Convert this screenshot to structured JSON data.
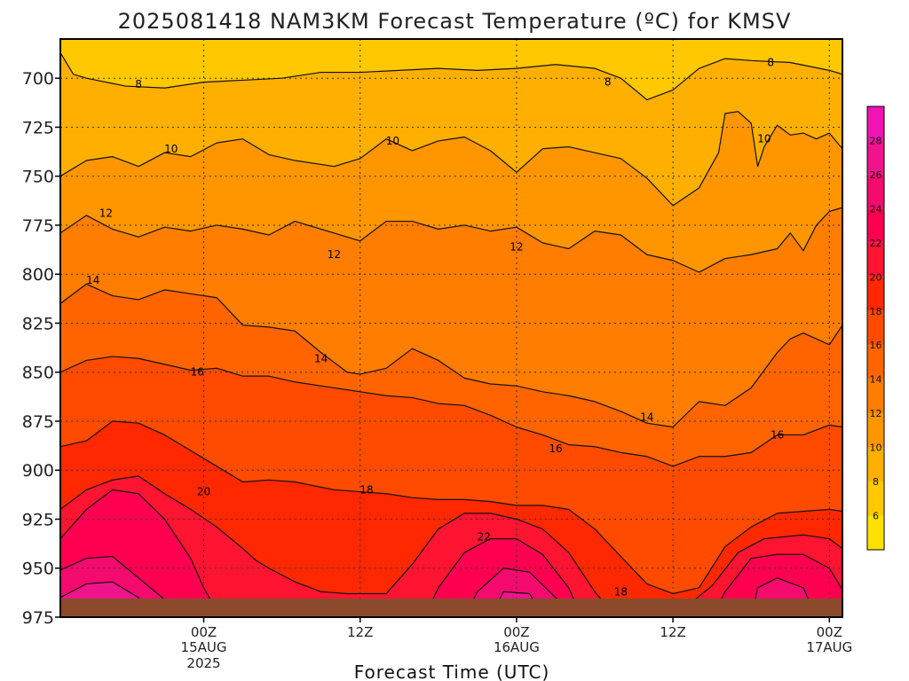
{
  "chart_data": {
    "type": "contour",
    "title": "2025081418 NAM3KM Forecast Temperature (ºC) for KMSV",
    "xlabel": "Forecast Time (UTC)",
    "ylabel": "",
    "x_unit": "hours from 2025-08-14 18Z",
    "xlim": [
      -5,
      55
    ],
    "ylim": [
      975,
      680
    ],
    "y_ticks": [
      700,
      725,
      750,
      775,
      800,
      825,
      850,
      875,
      900,
      925,
      950,
      975
    ],
    "x_ticks": [
      {
        "h": 6,
        "l1": "00Z",
        "l2": "15AUG",
        "l3": "2025"
      },
      {
        "h": 18,
        "l1": "12Z",
        "l2": "",
        "l3": ""
      },
      {
        "h": 30,
        "l1": "00Z",
        "l2": "16AUG",
        "l3": ""
      },
      {
        "h": 42,
        "l1": "12Z",
        "l2": "",
        "l3": ""
      },
      {
        "h": 54,
        "l1": "00Z",
        "l2": "17AUG",
        "l3": ""
      }
    ],
    "grid": true,
    "contour_levels": [
      6,
      8,
      10,
      12,
      14,
      16,
      18,
      20,
      22,
      24,
      26,
      28
    ],
    "colorbar": {
      "placement": "right",
      "bounds": [
        4,
        6,
        8,
        10,
        12,
        14,
        16,
        18,
        20,
        22,
        24,
        26,
        28,
        30
      ],
      "labels": [
        "6",
        "8",
        "10",
        "12",
        "14",
        "16",
        "18",
        "20",
        "22",
        "24",
        "26",
        "28"
      ],
      "colors": [
        "#ffe100",
        "#ffc800",
        "#ffaf00",
        "#ff9600",
        "#ff7d00",
        "#ff6400",
        "#ff4b00",
        "#ff2800",
        "#ff1432",
        "#ff0050",
        "#f50a6e",
        "#f0148c",
        "#f014b4"
      ]
    },
    "isotherms": [
      {
        "temp": 8,
        "points": [
          [
            -5,
            687
          ],
          [
            -4,
            698
          ],
          [
            -3,
            700
          ],
          [
            0,
            704
          ],
          [
            3,
            705
          ],
          [
            6,
            702
          ],
          [
            9,
            701
          ],
          [
            12,
            700
          ],
          [
            15,
            697
          ],
          [
            18,
            697
          ],
          [
            21,
            696
          ],
          [
            24,
            695
          ],
          [
            27,
            696
          ],
          [
            30,
            695
          ],
          [
            33,
            693
          ],
          [
            36,
            695
          ],
          [
            38,
            700
          ],
          [
            40,
            711
          ],
          [
            42,
            706
          ],
          [
            44,
            695
          ],
          [
            46,
            690
          ],
          [
            48,
            691
          ],
          [
            51,
            692
          ],
          [
            54,
            696
          ],
          [
            55,
            698
          ]
        ],
        "labels": [
          {
            "x": 1,
            "p": 703
          },
          {
            "x": 37,
            "p": 702
          },
          {
            "x": 49.5,
            "p": 692
          }
        ]
      },
      {
        "temp": 10,
        "points": [
          [
            -5,
            750
          ],
          [
            -3,
            742
          ],
          [
            -1,
            740
          ],
          [
            1,
            745
          ],
          [
            3,
            738
          ],
          [
            5,
            740
          ],
          [
            7,
            733
          ],
          [
            9,
            731
          ],
          [
            11,
            739
          ],
          [
            13,
            742
          ],
          [
            16,
            745
          ],
          [
            18,
            741
          ],
          [
            20,
            731
          ],
          [
            22,
            737
          ],
          [
            24,
            732
          ],
          [
            26,
            730
          ],
          [
            28,
            737
          ],
          [
            30,
            748
          ],
          [
            32,
            736
          ],
          [
            34,
            735
          ],
          [
            36,
            738
          ],
          [
            38,
            741
          ],
          [
            40,
            751
          ],
          [
            42,
            765
          ],
          [
            44,
            756
          ],
          [
            45.5,
            738
          ],
          [
            46,
            718
          ],
          [
            47,
            717
          ],
          [
            48,
            723
          ],
          [
            48.5,
            745
          ],
          [
            49,
            735
          ],
          [
            50,
            724
          ],
          [
            51,
            729
          ],
          [
            52,
            728
          ],
          [
            53,
            731
          ],
          [
            54,
            728
          ],
          [
            55,
            736
          ]
        ],
        "labels": [
          {
            "x": 3.5,
            "p": 736
          },
          {
            "x": 20.5,
            "p": 732
          },
          {
            "x": 49,
            "p": 731
          }
        ]
      },
      {
        "temp": 12,
        "points": [
          [
            -5,
            779
          ],
          [
            -3,
            770
          ],
          [
            -1,
            777
          ],
          [
            1,
            781
          ],
          [
            3,
            776
          ],
          [
            5,
            778
          ],
          [
            7,
            775
          ],
          [
            9,
            777
          ],
          [
            11,
            780
          ],
          [
            13,
            773
          ],
          [
            16,
            779
          ],
          [
            18,
            783
          ],
          [
            20,
            773
          ],
          [
            22,
            773
          ],
          [
            24,
            777
          ],
          [
            26,
            775
          ],
          [
            28,
            778
          ],
          [
            30,
            776
          ],
          [
            32,
            784
          ],
          [
            34,
            787
          ],
          [
            36,
            778
          ],
          [
            38,
            780
          ],
          [
            40,
            790
          ],
          [
            42,
            793
          ],
          [
            44,
            799
          ],
          [
            46,
            792
          ],
          [
            48,
            790
          ],
          [
            50,
            787
          ],
          [
            51,
            779
          ],
          [
            52,
            788
          ],
          [
            53,
            775
          ],
          [
            54,
            768
          ],
          [
            55,
            766
          ]
        ],
        "labels": [
          {
            "x": -1.5,
            "p": 769
          },
          {
            "x": 16,
            "p": 790
          },
          {
            "x": 30,
            "p": 786
          }
        ]
      },
      {
        "temp": 14,
        "points": [
          [
            -5,
            815
          ],
          [
            -3,
            805
          ],
          [
            -1,
            811
          ],
          [
            1,
            813
          ],
          [
            3,
            808
          ],
          [
            5,
            810
          ],
          [
            7,
            812
          ],
          [
            9,
            826
          ],
          [
            11,
            827
          ],
          [
            13,
            829
          ],
          [
            15,
            840
          ],
          [
            16,
            845
          ],
          [
            17,
            850
          ],
          [
            18,
            851
          ],
          [
            20,
            848
          ],
          [
            22,
            838
          ],
          [
            24,
            844
          ],
          [
            26,
            853
          ],
          [
            28,
            856
          ],
          [
            30,
            857
          ],
          [
            32,
            860
          ],
          [
            34,
            862
          ],
          [
            36,
            865
          ],
          [
            38,
            870
          ],
          [
            40,
            876
          ],
          [
            42,
            878
          ],
          [
            44,
            865
          ],
          [
            46,
            867
          ],
          [
            48,
            858
          ],
          [
            50,
            840
          ],
          [
            51,
            833
          ],
          [
            52,
            830
          ],
          [
            54,
            836
          ],
          [
            55,
            826
          ]
        ],
        "labels": [
          {
            "x": -2.5,
            "p": 803
          },
          {
            "x": 15,
            "p": 843
          },
          {
            "x": 40,
            "p": 873
          }
        ]
      },
      {
        "temp": 16,
        "points": [
          [
            -5,
            850
          ],
          [
            -3,
            844
          ],
          [
            -1,
            842
          ],
          [
            1,
            843
          ],
          [
            3,
            846
          ],
          [
            5,
            849
          ],
          [
            7,
            848
          ],
          [
            9,
            852
          ],
          [
            11,
            852
          ],
          [
            13,
            855
          ],
          [
            16,
            858
          ],
          [
            18,
            860
          ],
          [
            20,
            862
          ],
          [
            22,
            863
          ],
          [
            24,
            866
          ],
          [
            26,
            867
          ],
          [
            28,
            872
          ],
          [
            30,
            878
          ],
          [
            32,
            882
          ],
          [
            34,
            887
          ],
          [
            36,
            888
          ],
          [
            38,
            891
          ],
          [
            40,
            893
          ],
          [
            42,
            898
          ],
          [
            44,
            893
          ],
          [
            46,
            893
          ],
          [
            48,
            891
          ],
          [
            50,
            882
          ],
          [
            52,
            882
          ],
          [
            54,
            877
          ],
          [
            55,
            878
          ]
        ],
        "labels": [
          {
            "x": 5.5,
            "p": 850
          },
          {
            "x": 33,
            "p": 889
          },
          {
            "x": 50,
            "p": 882
          }
        ]
      },
      {
        "temp": 18,
        "points": [
          [
            -5,
            888
          ],
          [
            -3,
            885
          ],
          [
            -1,
            875
          ],
          [
            1,
            876
          ],
          [
            3,
            882
          ],
          [
            5,
            890
          ],
          [
            7,
            898
          ],
          [
            9,
            906
          ],
          [
            11,
            905
          ],
          [
            13,
            906
          ],
          [
            16,
            910
          ],
          [
            18,
            911
          ],
          [
            20,
            912
          ],
          [
            22,
            914
          ],
          [
            24,
            915
          ],
          [
            26,
            915
          ],
          [
            28,
            916
          ],
          [
            30,
            918
          ],
          [
            32,
            918
          ],
          [
            34,
            920
          ],
          [
            36,
            930
          ],
          [
            38,
            944
          ],
          [
            40,
            958
          ],
          [
            42,
            963
          ],
          [
            44,
            960
          ],
          [
            46,
            939
          ],
          [
            48,
            929
          ],
          [
            50,
            922
          ],
          [
            52,
            921
          ],
          [
            54,
            920
          ],
          [
            55,
            921
          ]
        ],
        "labels": [
          {
            "x": 18.5,
            "p": 910
          },
          {
            "x": 38,
            "p": 962
          }
        ]
      },
      {
        "temp": 20,
        "points": [
          [
            -5,
            920
          ],
          [
            -3,
            910
          ],
          [
            -1,
            905
          ],
          [
            1,
            903
          ],
          [
            3,
            912
          ],
          [
            5,
            920
          ],
          [
            7,
            929
          ],
          [
            9,
            940
          ],
          [
            10,
            946
          ],
          [
            11,
            950
          ],
          [
            13,
            957
          ],
          [
            15,
            962
          ],
          [
            17,
            963
          ],
          [
            20,
            963
          ],
          [
            22,
            948
          ],
          [
            24,
            930
          ],
          [
            26,
            922
          ],
          [
            28,
            922
          ],
          [
            30,
            925
          ],
          [
            32,
            930
          ],
          [
            34,
            942
          ],
          [
            36,
            962
          ],
          [
            37,
            970
          ],
          [
            38,
            975
          ],
          [
            42,
            975
          ],
          [
            45,
            959
          ],
          [
            47,
            942
          ],
          [
            49,
            935
          ],
          [
            52,
            933
          ],
          [
            54,
            935
          ],
          [
            55,
            940
          ]
        ],
        "labels": [
          {
            "x": 6,
            "p": 911
          }
        ]
      },
      {
        "temp": 22,
        "points": [
          [
            -5,
            935
          ],
          [
            -3,
            920
          ],
          [
            -1,
            910
          ],
          [
            1,
            912
          ],
          [
            3,
            925
          ],
          [
            5,
            945
          ],
          [
            6,
            960
          ],
          [
            7,
            972
          ],
          [
            23,
            974
          ],
          [
            24,
            960
          ],
          [
            26,
            942
          ],
          [
            28,
            935
          ],
          [
            30,
            935
          ],
          [
            32,
            943
          ],
          [
            34,
            960
          ],
          [
            35,
            975
          ],
          [
            45,
            975
          ],
          [
            46,
            962
          ],
          [
            48,
            945
          ],
          [
            50,
            943
          ],
          [
            52,
            943
          ],
          [
            54,
            950
          ],
          [
            55,
            961
          ]
        ],
        "labels": [
          {
            "x": 27.5,
            "p": 934
          }
        ]
      },
      {
        "temp": 24,
        "points": [
          [
            -5,
            951
          ],
          [
            -3,
            945
          ],
          [
            -1,
            944
          ],
          [
            1,
            955
          ],
          [
            3,
            966
          ],
          [
            4,
            975
          ],
          [
            26,
            975
          ],
          [
            27,
            962
          ],
          [
            29,
            950
          ],
          [
            31,
            952
          ],
          [
            33,
            965
          ],
          [
            34,
            975
          ],
          [
            48,
            975
          ],
          [
            48.5,
            960
          ],
          [
            50,
            955
          ],
          [
            52,
            960
          ],
          [
            53,
            975
          ]
        ],
        "labels": []
      },
      {
        "temp": 26,
        "points": [
          [
            -5,
            965
          ],
          [
            -3,
            958
          ],
          [
            -1,
            957
          ],
          [
            1,
            965
          ],
          [
            2,
            975
          ],
          [
            28,
            975
          ],
          [
            29,
            962
          ],
          [
            31,
            963
          ],
          [
            32,
            975
          ]
        ],
        "labels": []
      }
    ]
  }
}
